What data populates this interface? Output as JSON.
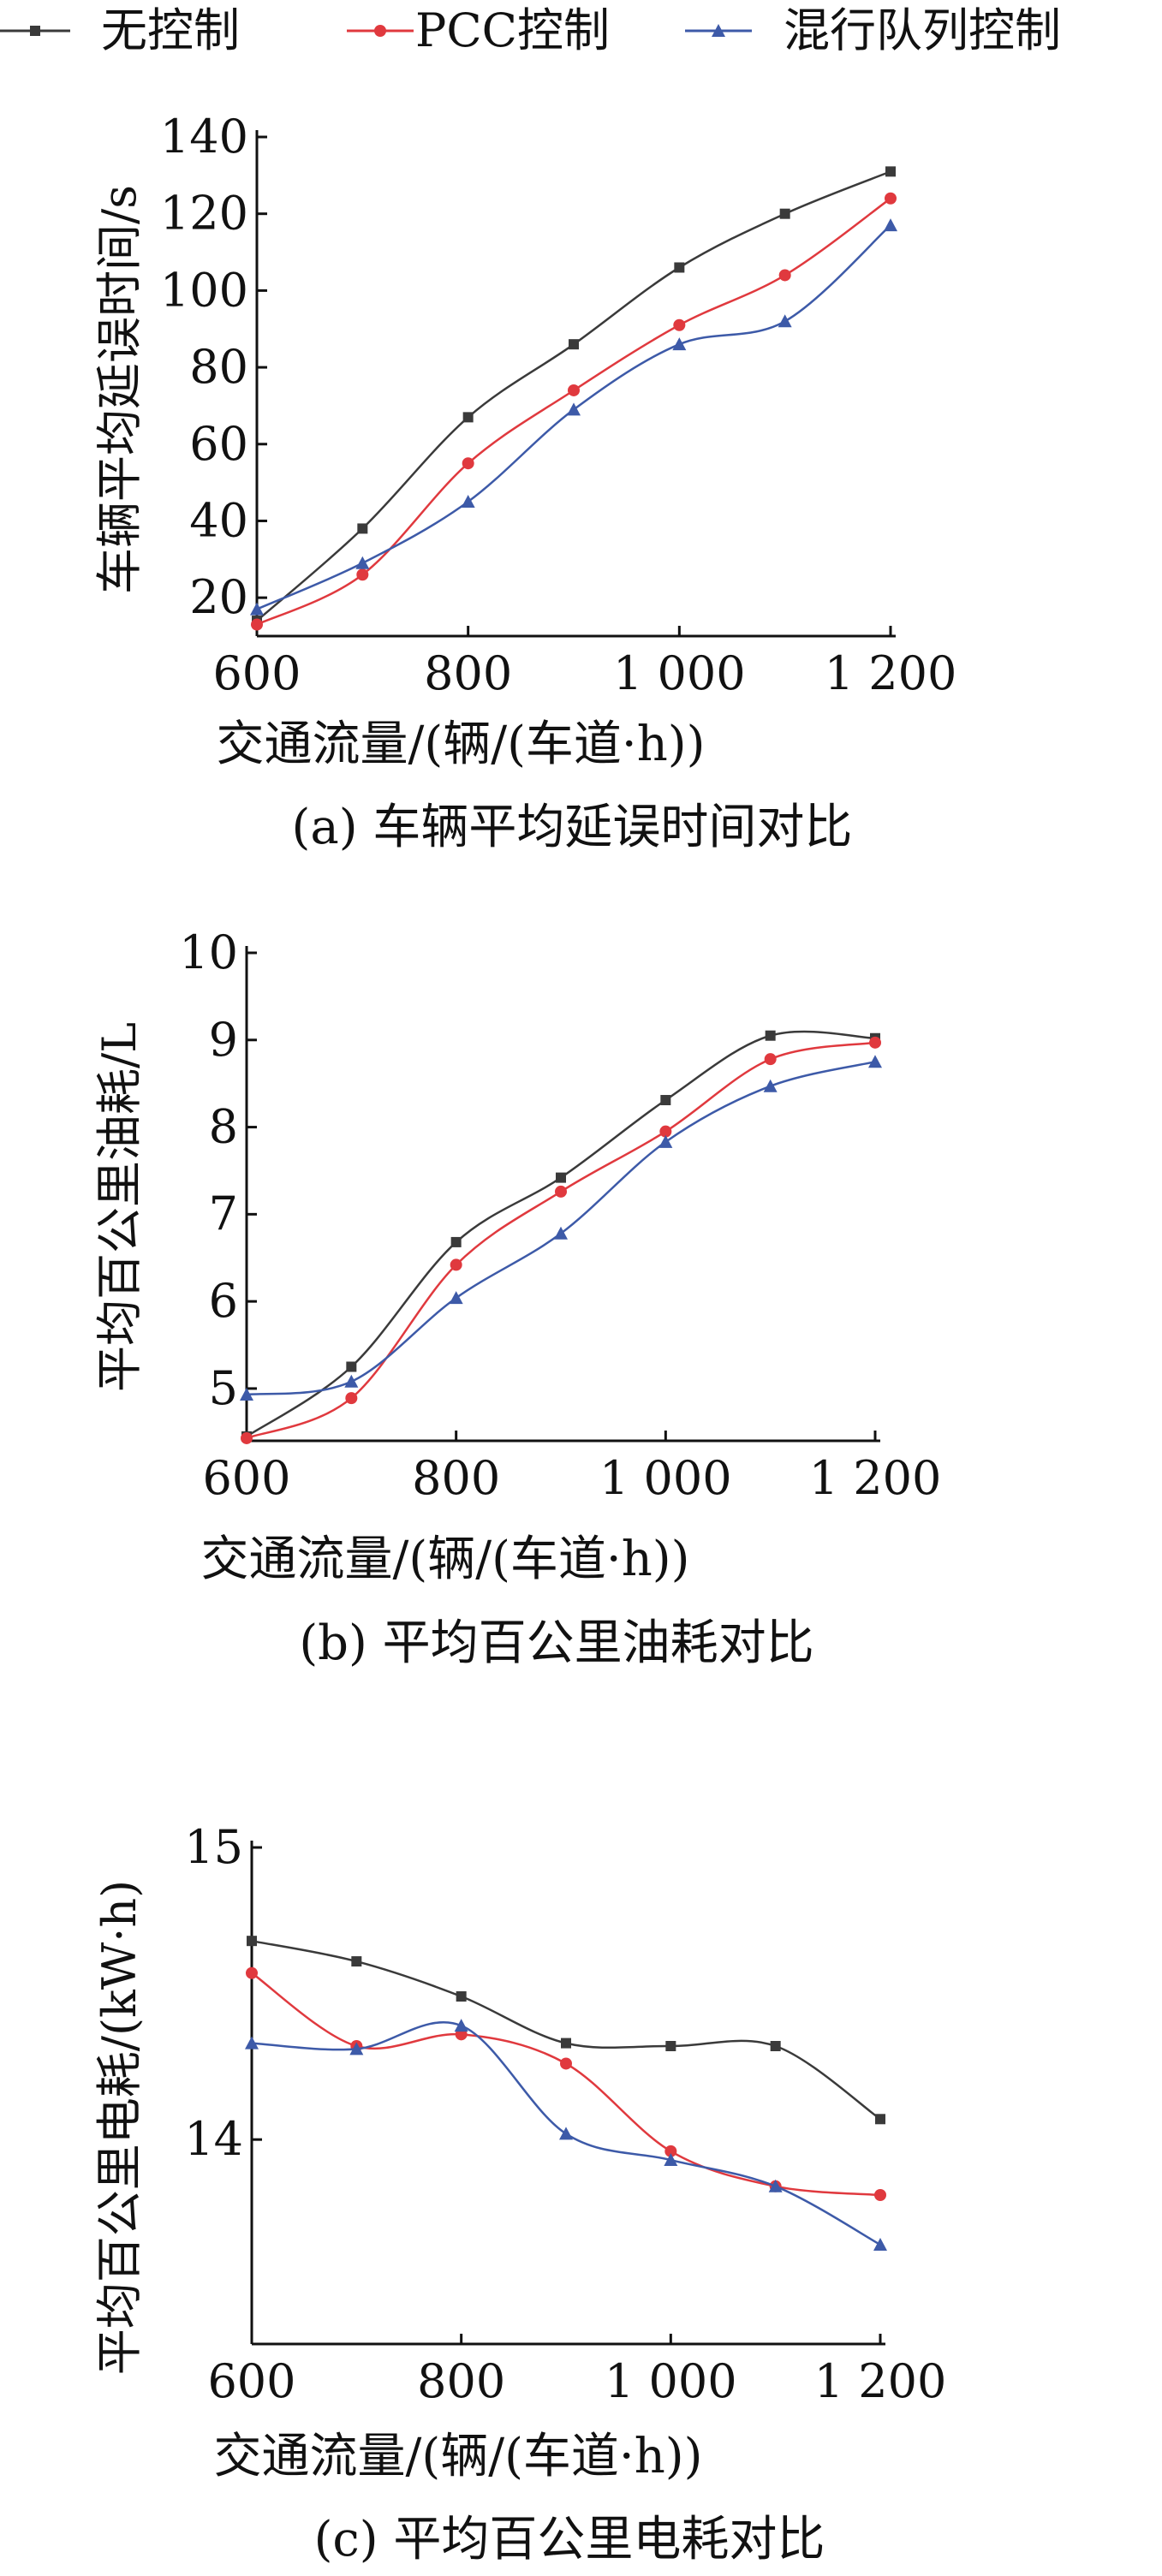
{
  "legend": {
    "items": [
      {
        "label": "无控制",
        "color": "#3a3a3a",
        "marker": "square"
      },
      {
        "label": "PCC控制",
        "color": "#e0393e",
        "marker": "circle"
      },
      {
        "label": "混行队列控制",
        "color": "#3d5aa8",
        "marker": "triangle"
      }
    ]
  },
  "chart_data": [
    {
      "type": "line",
      "caption": "(a) 车辆平均延误时间对比",
      "xlabel": "交通流量/(辆/(车道·h))",
      "ylabel": "车辆平均延误时间/s",
      "x": [
        600,
        700,
        800,
        900,
        1000,
        1100,
        1200
      ],
      "xticks": [
        600,
        800,
        1000,
        1200
      ],
      "xtick_labels": [
        "600",
        "800",
        "1 000",
        "1 200"
      ],
      "yticks": [
        20,
        40,
        60,
        80,
        100,
        120,
        140
      ],
      "xlim": [
        600,
        1200
      ],
      "ylim": [
        10,
        140
      ],
      "series": [
        {
          "name": "无控制",
          "values": [
            14,
            38,
            67,
            86,
            106,
            120,
            131
          ]
        },
        {
          "name": "PCC控制",
          "values": [
            13,
            26,
            55,
            74,
            91,
            104,
            124
          ]
        },
        {
          "name": "混行队列控制",
          "values": [
            17,
            29,
            45,
            69,
            86,
            92,
            117
          ]
        }
      ]
    },
    {
      "type": "line",
      "caption": "(b) 平均百公里油耗对比",
      "xlabel": "交通流量/(辆/(车道·h))",
      "ylabel": "平均百公里油耗/L",
      "x": [
        600,
        700,
        800,
        900,
        1000,
        1100,
        1200
      ],
      "xticks": [
        600,
        800,
        1000,
        1200
      ],
      "xtick_labels": [
        "600",
        "800",
        "1 000",
        "1 200"
      ],
      "yticks": [
        5,
        6,
        7,
        8,
        9,
        10
      ],
      "xlim": [
        600,
        1200
      ],
      "ylim": [
        4.4,
        10
      ],
      "series": [
        {
          "name": "无控制",
          "values": [
            4.45,
            5.25,
            6.68,
            7.42,
            8.31,
            9.05,
            9.02
          ]
        },
        {
          "name": "PCC控制",
          "values": [
            4.43,
            4.89,
            6.42,
            7.26,
            7.95,
            8.78,
            8.97
          ]
        },
        {
          "name": "混行队列控制",
          "values": [
            4.93,
            5.08,
            6.04,
            6.78,
            7.83,
            8.47,
            8.75
          ]
        }
      ]
    },
    {
      "type": "line",
      "caption": "(c) 平均百公里电耗对比",
      "xlabel": "交通流量/(辆/(车道·h))",
      "ylabel": "平均百公里电耗/(kW·h)",
      "x": [
        600,
        700,
        800,
        900,
        1000,
        1100,
        1200
      ],
      "xticks": [
        600,
        800,
        1000,
        1200
      ],
      "xtick_labels": [
        "600",
        "800",
        "1 000",
        "1 200"
      ],
      "yticks": [
        14,
        15
      ],
      "xlim": [
        600,
        1200
      ],
      "ylim": [
        13.3,
        15
      ],
      "series": [
        {
          "name": "无控制",
          "values": [
            14.68,
            14.61,
            14.49,
            14.33,
            14.32,
            14.32,
            14.07
          ]
        },
        {
          "name": "PCC控制",
          "values": [
            14.57,
            14.32,
            14.36,
            14.26,
            13.96,
            13.84,
            13.81
          ]
        },
        {
          "name": "混行队列控制",
          "values": [
            14.33,
            14.31,
            14.39,
            14.02,
            13.93,
            13.84,
            13.64
          ]
        }
      ]
    }
  ]
}
